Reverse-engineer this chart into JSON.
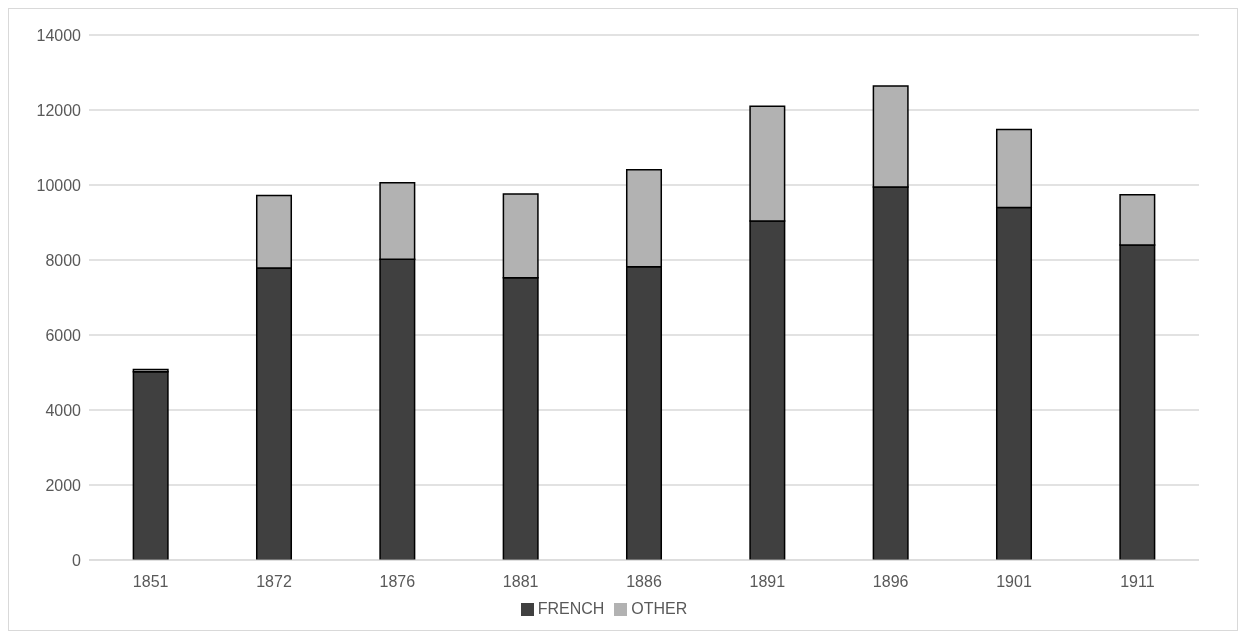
{
  "chart_data": {
    "type": "bar",
    "stacked": true,
    "categories": [
      "1851",
      "1872",
      "1876",
      "1881",
      "1886",
      "1891",
      "1896",
      "1901",
      "1911"
    ],
    "series": [
      {
        "name": "FRENCH",
        "color": "#404040",
        "values": [
          5020,
          7790,
          8020,
          7530,
          7820,
          9040,
          9950,
          9400,
          8400
        ]
      },
      {
        "name": "OTHER",
        "color": "#b2b2b2",
        "values": [
          60,
          1930,
          2040,
          2230,
          2590,
          3060,
          2690,
          2080,
          1340
        ]
      }
    ],
    "ylim": [
      0,
      14000
    ],
    "yticks": [
      0,
      2000,
      4000,
      6000,
      8000,
      10000,
      12000,
      14000
    ],
    "grid": "y",
    "legend": "bottom"
  }
}
